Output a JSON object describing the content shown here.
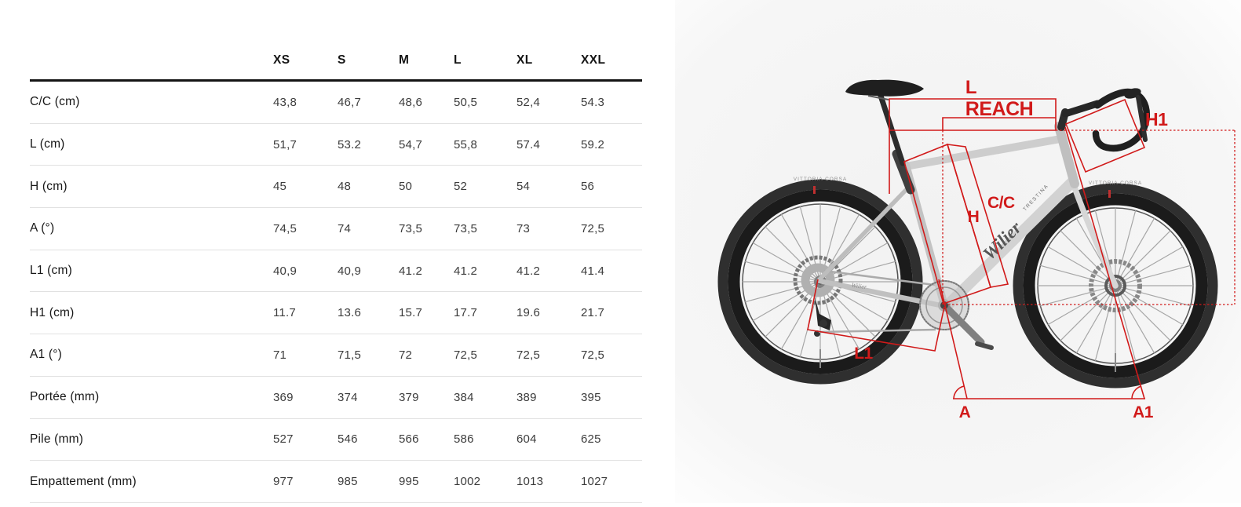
{
  "table": {
    "sizes": [
      "XS",
      "S",
      "M",
      "L",
      "XL",
      "XXL"
    ],
    "rows": [
      {
        "label": "C/C (cm)",
        "values": [
          "43,8",
          "46,7",
          "48,6",
          "50,5",
          "52,4",
          "54.3"
        ]
      },
      {
        "label": "L (cm)",
        "values": [
          "51,7",
          "53.2",
          "54,7",
          "55,8",
          "57.4",
          "59.2"
        ]
      },
      {
        "label": "H (cm)",
        "values": [
          "45",
          "48",
          "50",
          "52",
          "54",
          "56"
        ]
      },
      {
        "label": "A (°)",
        "values": [
          "74,5",
          "74",
          "73,5",
          "73,5",
          "73",
          "72,5"
        ]
      },
      {
        "label": "L1 (cm)",
        "values": [
          "40,9",
          "40,9",
          "41.2",
          "41.2",
          "41.2",
          "41.4"
        ]
      },
      {
        "label": "H1 (cm)",
        "values": [
          "11.7",
          "13.6",
          "15.7",
          "17.7",
          "19.6",
          "21.7"
        ]
      },
      {
        "label": "A1 (°)",
        "values": [
          "71",
          "71,5",
          "72",
          "72,5",
          "72,5",
          "72,5"
        ]
      },
      {
        "label": "Portée (mm)",
        "values": [
          "369",
          "374",
          "379",
          "384",
          "389",
          "395"
        ]
      },
      {
        "label": "Pile (mm)",
        "values": [
          "527",
          "546",
          "566",
          "586",
          "604",
          "625"
        ]
      },
      {
        "label": "Empattement (mm)",
        "values": [
          "977",
          "985",
          "995",
          "1002",
          "1013",
          "1027"
        ]
      }
    ]
  },
  "diagram": {
    "labels": {
      "l": "L",
      "reach": "REACH",
      "h1": "H1",
      "cc": "C/C",
      "h": "H",
      "l1": "L1",
      "a": "A",
      "a1": "A1"
    },
    "brand": "Wilier",
    "brand_small": "TRESTINA",
    "chainstay_brand": "Wilier",
    "tire_label": "VITTORIA CORSA",
    "colors": {
      "annotation_red": "#d11a1a"
    }
  }
}
